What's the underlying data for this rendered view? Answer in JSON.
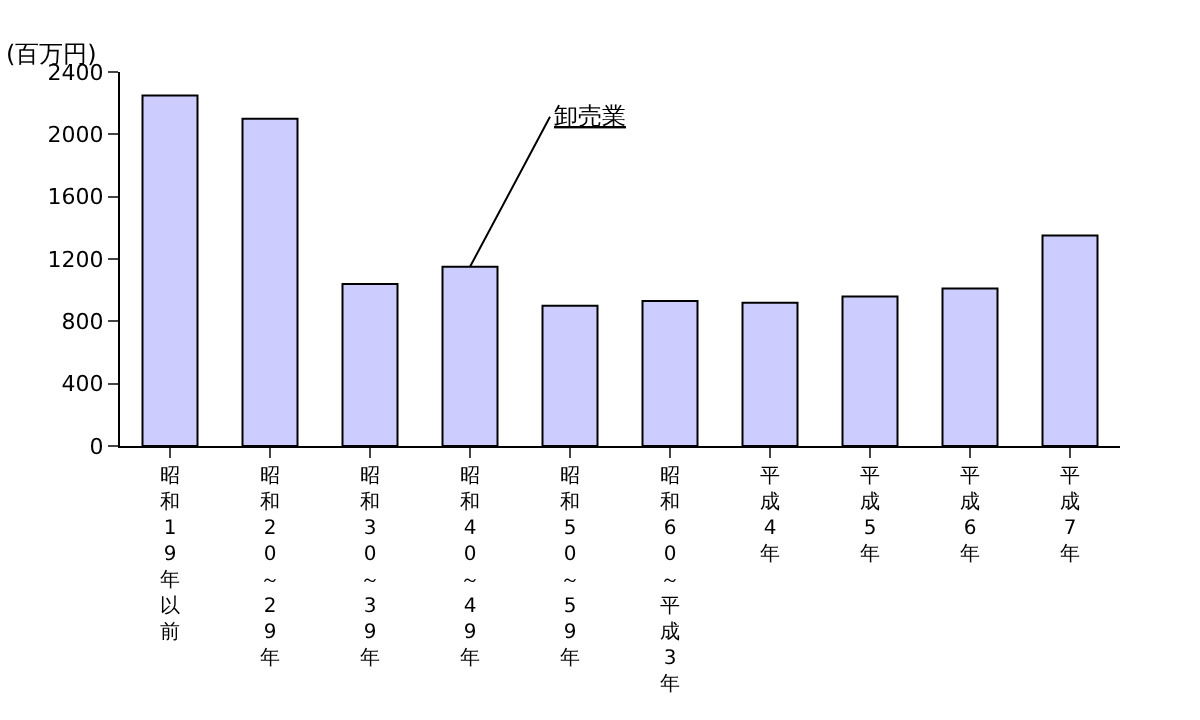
{
  "chart_data": {
    "type": "bar",
    "ylabel": "(百万円)",
    "categories": [
      "昭和19年以前",
      "昭和20～29年",
      "昭和30～39年",
      "昭和40～49年",
      "昭和50～59年",
      "昭和60～平成3年",
      "平成4年",
      "平成5年",
      "平成6年",
      "平成7年"
    ],
    "values": [
      2250,
      2100,
      1040,
      1150,
      900,
      930,
      920,
      960,
      1010,
      1350
    ],
    "color": "#ccccff",
    "ylim": [
      0,
      2400
    ],
    "yticks": [
      0,
      400,
      800,
      1200,
      1600,
      2000,
      2400
    ],
    "annotations": [
      {
        "text": "卸売業",
        "x": "昭和40～49年",
        "y": 1150
      }
    ]
  }
}
